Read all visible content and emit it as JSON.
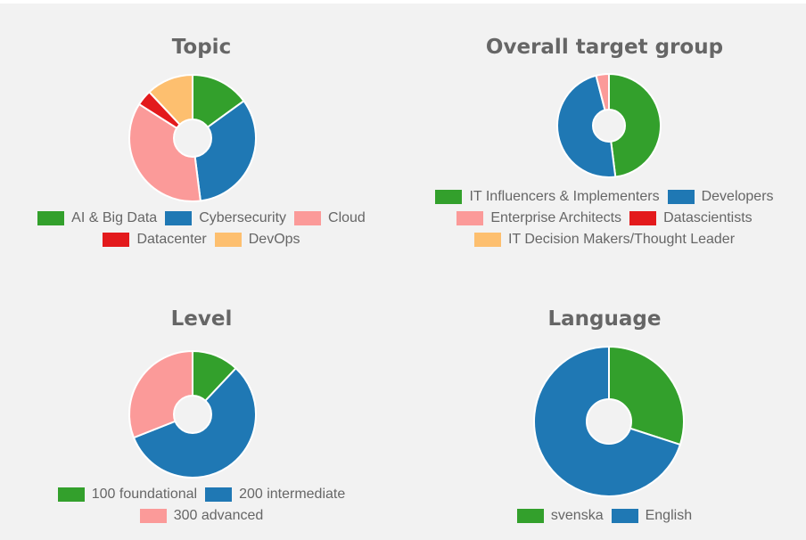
{
  "chart_data": [
    {
      "type": "pie",
      "id": "topic",
      "title": "Topic",
      "hole": "donut",
      "slices": [
        {
          "label": "AI & Big Data",
          "value": 15,
          "color": "#33a02c"
        },
        {
          "label": "Cybersecurity",
          "value": 33,
          "color": "#1f78b4"
        },
        {
          "label": "Cloud",
          "value": 36,
          "color": "#fb9a99"
        },
        {
          "label": "Datacenter",
          "value": 4,
          "color": "#e31a1c"
        },
        {
          "label": "DevOps",
          "value": 12,
          "color": "#fdbf6f"
        }
      ],
      "legend_rows": [
        [
          0,
          1,
          2
        ],
        [
          3,
          4
        ]
      ]
    },
    {
      "type": "pie",
      "id": "target",
      "title": "Overall target group",
      "hole": "donut",
      "slices": [
        {
          "label": "IT Influencers & Implementers",
          "value": 48,
          "color": "#33a02c"
        },
        {
          "label": "Developers",
          "value": 48,
          "color": "#1f78b4"
        },
        {
          "label": "Enterprise Architects",
          "value": 4,
          "color": "#fb9a99"
        },
        {
          "label": "Datascientists",
          "value": 0,
          "color": "#e31a1c"
        },
        {
          "label": "IT Decision Makers/Thought Leader",
          "value": 0,
          "color": "#fdbf6f"
        }
      ],
      "legend_rows": [
        [
          0,
          1
        ],
        [
          2,
          3
        ],
        [
          4
        ]
      ]
    },
    {
      "type": "pie",
      "id": "level",
      "title": "Level",
      "hole": "donut",
      "slices": [
        {
          "label": "100 foundational",
          "value": 12,
          "color": "#33a02c"
        },
        {
          "label": "200 intermediate",
          "value": 57,
          "color": "#1f78b4"
        },
        {
          "label": "300 advanced",
          "value": 31,
          "color": "#fb9a99"
        }
      ],
      "legend_rows": [
        [
          0,
          1
        ],
        [
          2
        ]
      ]
    },
    {
      "type": "pie",
      "id": "language",
      "title": "Language",
      "hole": "donut",
      "slices": [
        {
          "label": "svenska",
          "value": 30,
          "color": "#33a02c"
        },
        {
          "label": "English",
          "value": 70,
          "color": "#1f78b4"
        }
      ],
      "legend_rows": [
        [
          0,
          1
        ]
      ]
    }
  ]
}
